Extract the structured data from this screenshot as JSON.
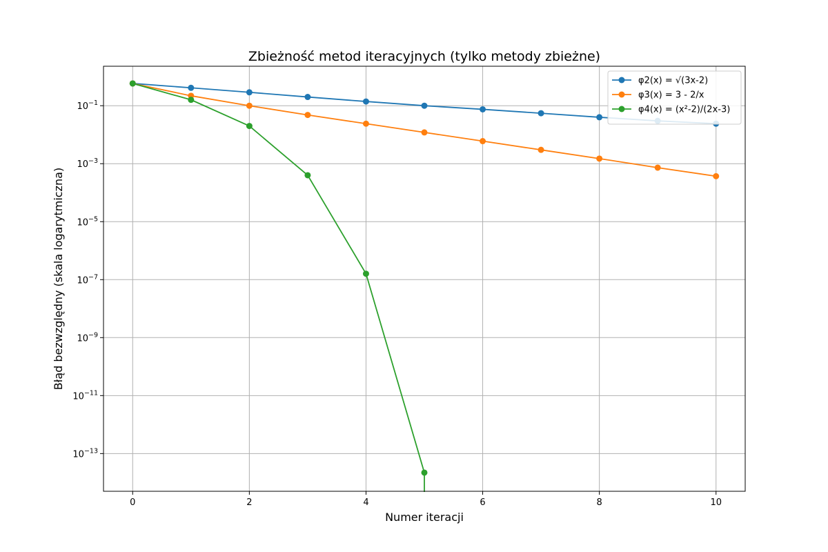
{
  "chart_data": {
    "type": "line",
    "title": "Zbieżność metod iteracyjnych (tylko metody zbieżne)",
    "xlabel": "Numer iteracji",
    "ylabel": "Błąd bezwzględny (skala logarytmiczna)",
    "xlim": [
      -0.5,
      10.5
    ],
    "ylim": [
      5e-15,
      2.3
    ],
    "y_scale": "log",
    "grid": true,
    "legend_position": "top-right",
    "x_ticks": [
      {
        "value": 0,
        "label": "0"
      },
      {
        "value": 2,
        "label": "2"
      },
      {
        "value": 4,
        "label": "4"
      },
      {
        "value": 6,
        "label": "6"
      },
      {
        "value": 8,
        "label": "8"
      },
      {
        "value": 10,
        "label": "10"
      }
    ],
    "y_ticks": [
      {
        "value": 0.1,
        "base": "10",
        "exp": "−1"
      },
      {
        "value": 0.001,
        "base": "10",
        "exp": "−3"
      },
      {
        "value": 1e-05,
        "base": "10",
        "exp": "−5"
      },
      {
        "value": 1e-07,
        "base": "10",
        "exp": "−7"
      },
      {
        "value": 1e-09,
        "base": "10",
        "exp": "−9"
      },
      {
        "value": 1e-11,
        "base": "10",
        "exp": "−11"
      },
      {
        "value": 1e-13,
        "base": "10",
        "exp": "−13"
      }
    ],
    "series": [
      {
        "name": "φ2(x) = √(3x-2)",
        "color": "#1f77b4",
        "x": [
          0,
          1,
          2,
          3,
          4,
          5,
          6,
          7,
          8,
          9,
          10
        ],
        "y": [
          0.586,
          0.414,
          0.29,
          0.2,
          0.14,
          0.1,
          0.075,
          0.055,
          0.04,
          0.03,
          0.024
        ]
      },
      {
        "name": "φ3(x) = 3 - 2/x",
        "color": "#ff7f0e",
        "x": [
          0,
          1,
          2,
          3,
          4,
          5,
          6,
          7,
          8,
          9,
          10
        ],
        "y": [
          0.586,
          0.22,
          0.1,
          0.048,
          0.024,
          0.012,
          0.006,
          0.003,
          0.0015,
          0.00073,
          0.00037
        ]
      },
      {
        "name": "φ4(x) = (x²-2)/(2x-3)",
        "color": "#2ca02c",
        "x": [
          0,
          1,
          2,
          3,
          4,
          5
        ],
        "y": [
          0.586,
          0.16,
          0.02,
          0.0004,
          1.6e-07,
          2.2e-14
        ],
        "drop_to_axis_after_last": true
      }
    ]
  }
}
